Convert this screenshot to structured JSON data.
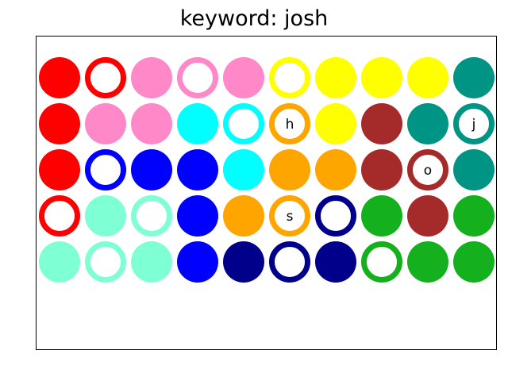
{
  "title": "keyword: josh",
  "palette": {
    "red": "#ff0000",
    "pink": "#ff88c8",
    "yellow": "#ffff00",
    "teal": "#009485",
    "cyan": "#00ffff",
    "orange": "#ffa500",
    "brown": "#a52a2a",
    "blue": "#0000ff",
    "aquamarine": "#7fffd4",
    "green": "#14b01e",
    "navy": "#00008b"
  },
  "grid": [
    [
      {
        "color": "red",
        "style": "filled",
        "letter": ""
      },
      {
        "color": "red",
        "style": "ring",
        "letter": ""
      },
      {
        "color": "pink",
        "style": "filled",
        "letter": ""
      },
      {
        "color": "pink",
        "style": "ring",
        "letter": ""
      },
      {
        "color": "pink",
        "style": "filled",
        "letter": ""
      },
      {
        "color": "yellow",
        "style": "ring",
        "letter": ""
      },
      {
        "color": "yellow",
        "style": "filled",
        "letter": ""
      },
      {
        "color": "yellow",
        "style": "filled",
        "letter": ""
      },
      {
        "color": "yellow",
        "style": "filled",
        "letter": ""
      },
      {
        "color": "teal",
        "style": "filled",
        "letter": ""
      }
    ],
    [
      {
        "color": "red",
        "style": "filled",
        "letter": ""
      },
      {
        "color": "pink",
        "style": "filled",
        "letter": ""
      },
      {
        "color": "pink",
        "style": "filled",
        "letter": ""
      },
      {
        "color": "cyan",
        "style": "filled",
        "letter": ""
      },
      {
        "color": "cyan",
        "style": "ring",
        "letter": ""
      },
      {
        "color": "orange",
        "style": "ring",
        "letter": "h"
      },
      {
        "color": "yellow",
        "style": "filled",
        "letter": ""
      },
      {
        "color": "brown",
        "style": "filled",
        "letter": ""
      },
      {
        "color": "teal",
        "style": "filled",
        "letter": ""
      },
      {
        "color": "teal",
        "style": "ring",
        "letter": "j"
      }
    ],
    [
      {
        "color": "red",
        "style": "filled",
        "letter": ""
      },
      {
        "color": "blue",
        "style": "ring",
        "letter": ""
      },
      {
        "color": "blue",
        "style": "filled",
        "letter": ""
      },
      {
        "color": "blue",
        "style": "filled",
        "letter": ""
      },
      {
        "color": "cyan",
        "style": "filled",
        "letter": ""
      },
      {
        "color": "orange",
        "style": "filled",
        "letter": ""
      },
      {
        "color": "orange",
        "style": "filled",
        "letter": ""
      },
      {
        "color": "brown",
        "style": "filled",
        "letter": ""
      },
      {
        "color": "brown",
        "style": "ring",
        "letter": "o"
      },
      {
        "color": "teal",
        "style": "filled",
        "letter": ""
      }
    ],
    [
      {
        "color": "red",
        "style": "ring",
        "letter": ""
      },
      {
        "color": "aquamarine",
        "style": "filled",
        "letter": ""
      },
      {
        "color": "aquamarine",
        "style": "ring",
        "letter": ""
      },
      {
        "color": "blue",
        "style": "filled",
        "letter": ""
      },
      {
        "color": "orange",
        "style": "filled",
        "letter": ""
      },
      {
        "color": "orange",
        "style": "ring",
        "letter": "s"
      },
      {
        "color": "navy",
        "style": "ring",
        "letter": ""
      },
      {
        "color": "green",
        "style": "filled",
        "letter": ""
      },
      {
        "color": "brown",
        "style": "filled",
        "letter": ""
      },
      {
        "color": "green",
        "style": "filled",
        "letter": ""
      }
    ],
    [
      {
        "color": "aquamarine",
        "style": "filled",
        "letter": ""
      },
      {
        "color": "aquamarine",
        "style": "ring",
        "letter": ""
      },
      {
        "color": "aquamarine",
        "style": "filled",
        "letter": ""
      },
      {
        "color": "blue",
        "style": "filled",
        "letter": ""
      },
      {
        "color": "navy",
        "style": "filled",
        "letter": ""
      },
      {
        "color": "navy",
        "style": "ring",
        "letter": ""
      },
      {
        "color": "navy",
        "style": "filled",
        "letter": ""
      },
      {
        "color": "green",
        "style": "ring",
        "letter": ""
      },
      {
        "color": "green",
        "style": "filled",
        "letter": ""
      },
      {
        "color": "green",
        "style": "filled",
        "letter": ""
      }
    ]
  ]
}
